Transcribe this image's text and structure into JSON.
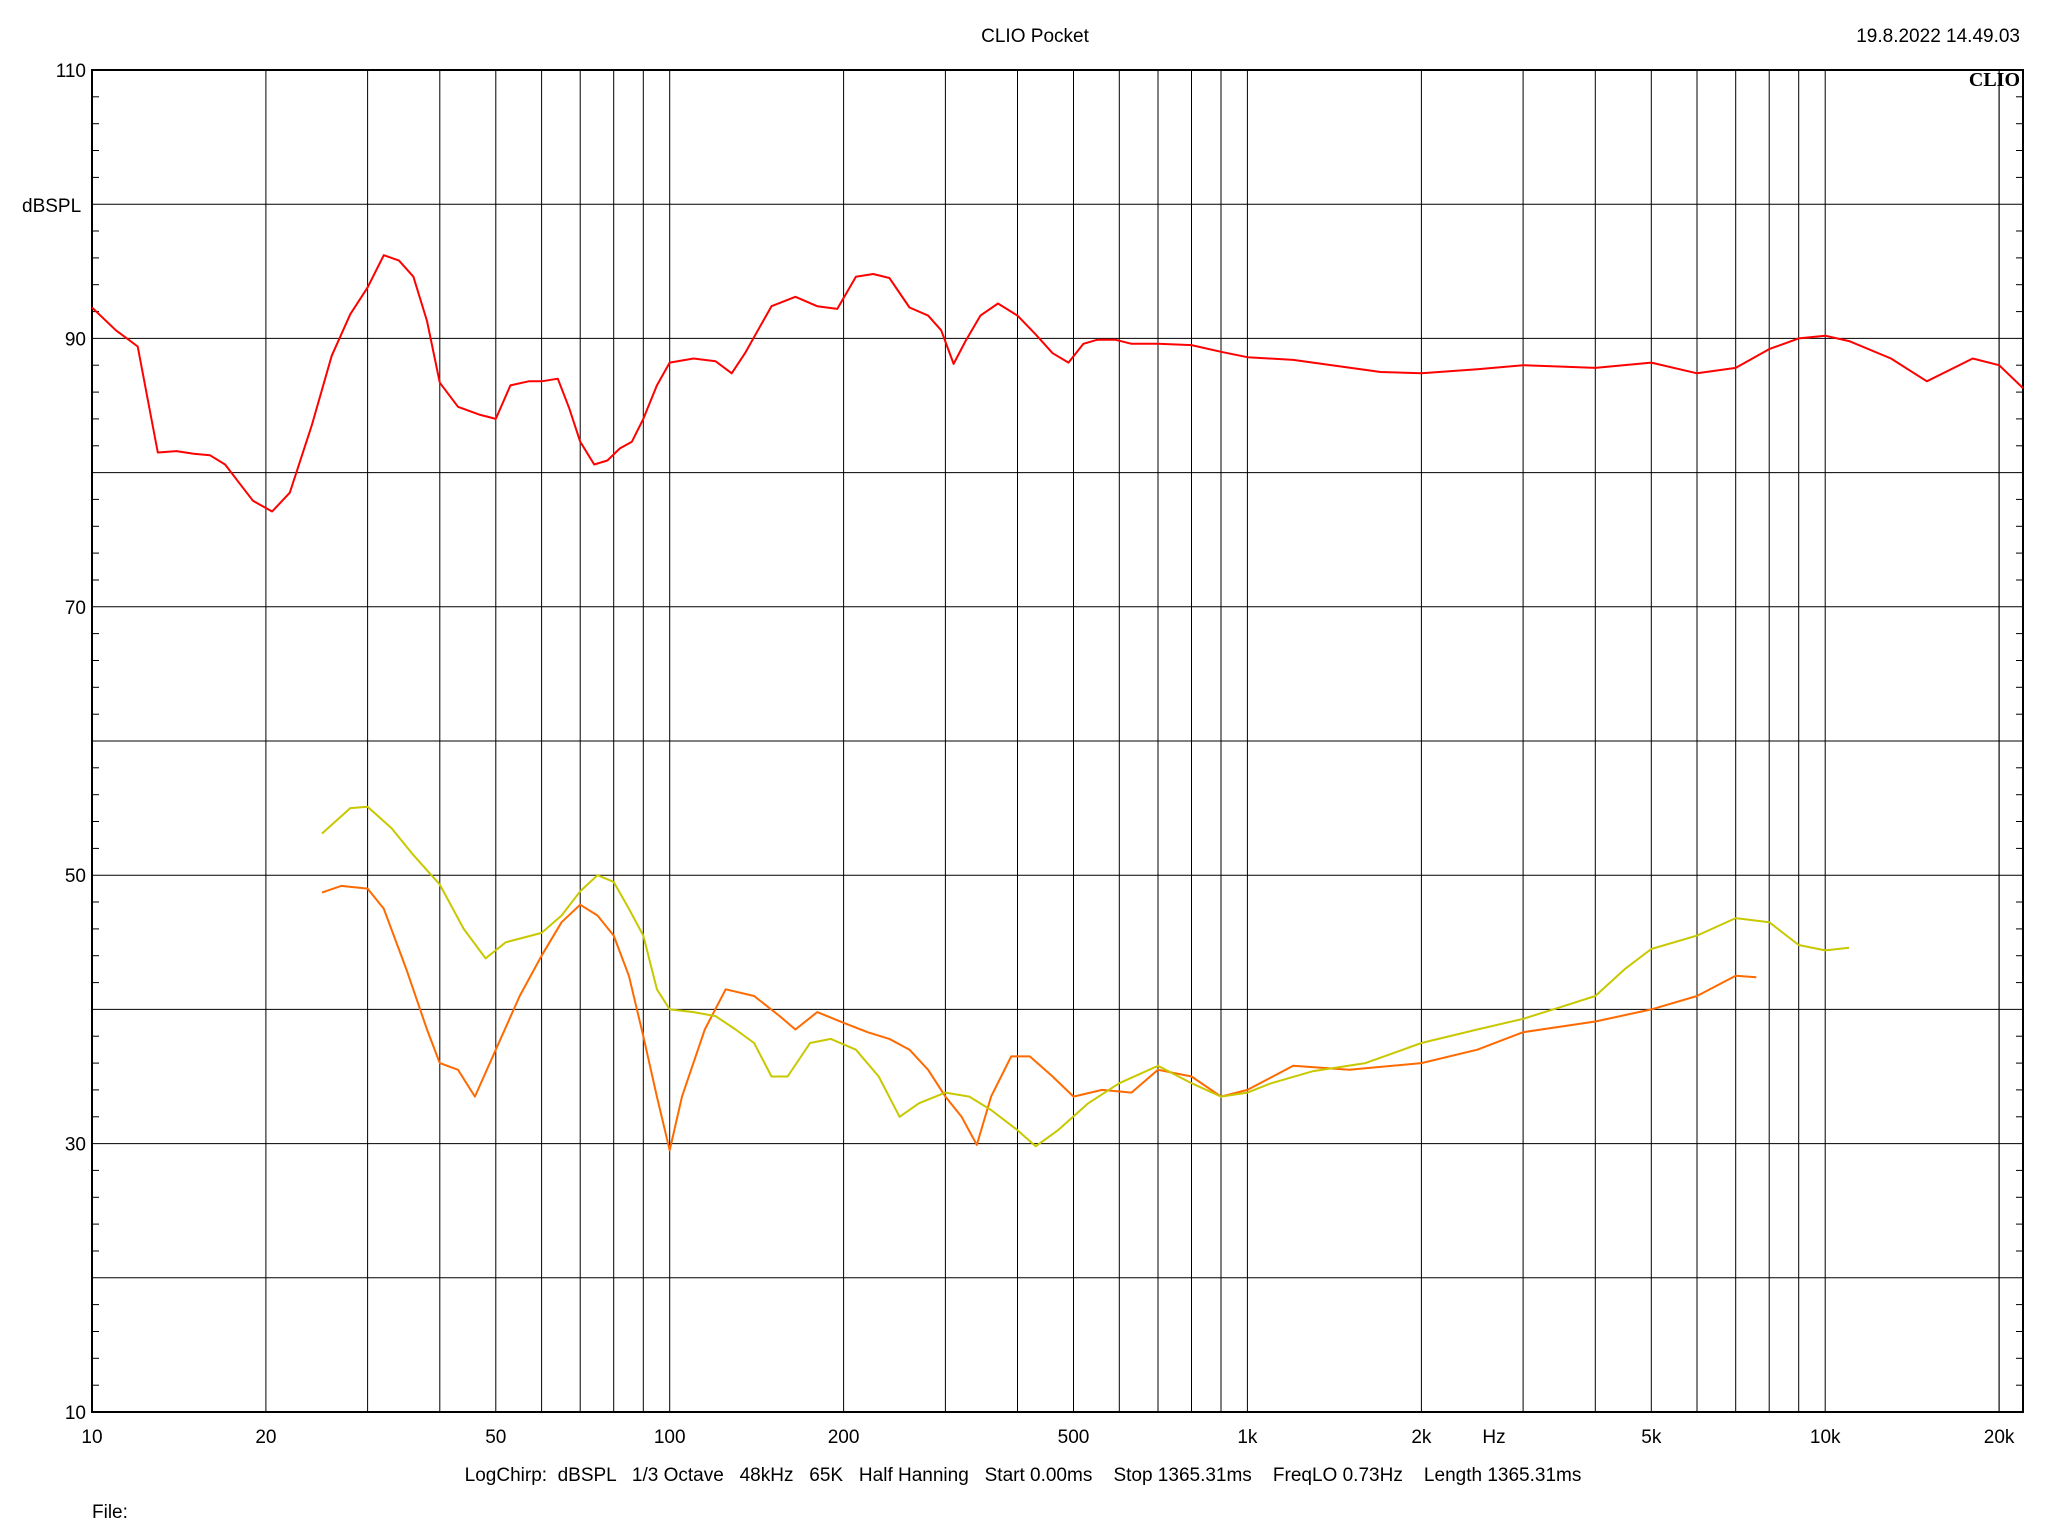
{
  "header": {
    "title": "CLIO Pocket",
    "timestamp": "19.8.2022 14.49.03",
    "logo": "CLIO"
  },
  "footer": {
    "settings": "LogChirp:  dBSPL   1/3 Octave   48kHz   65K   Half Hanning   Start 0.00ms    Stop 1365.31ms    FreqLO 0.73Hz    Length 1365.31ms",
    "file_label": "File:"
  },
  "chart_data": {
    "type": "line",
    "title": "CLIO Pocket",
    "xlabel": "Hz",
    "ylabel": "dBSPL",
    "x_scale": "log",
    "xlim": [
      10,
      22000
    ],
    "ylim": [
      10,
      110
    ],
    "grid": true,
    "x_ticks": [
      {
        "value": 10,
        "label": "10"
      },
      {
        "value": 20,
        "label": "20"
      },
      {
        "value": 50,
        "label": "50"
      },
      {
        "value": 100,
        "label": "100"
      },
      {
        "value": 200,
        "label": "200"
      },
      {
        "value": 500,
        "label": "500"
      },
      {
        "value": 1000,
        "label": "1k"
      },
      {
        "value": 2000,
        "label": "2k"
      },
      {
        "value": 5000,
        "label": "5k"
      },
      {
        "value": 10000,
        "label": "10k"
      },
      {
        "value": 20000,
        "label": "20k"
      }
    ],
    "y_ticks": [
      {
        "value": 110,
        "label": "110"
      },
      {
        "value": 90,
        "label": "90"
      },
      {
        "value": 70,
        "label": "70"
      },
      {
        "value": 50,
        "label": "50"
      },
      {
        "value": 30,
        "label": "30"
      },
      {
        "value": 10,
        "label": "10"
      }
    ],
    "series": [
      {
        "color": "#ff0000",
        "points": [
          [
            10,
            92.3
          ],
          [
            11,
            90.6
          ],
          [
            12,
            89.4
          ],
          [
            13,
            81.5
          ],
          [
            14,
            81.6
          ],
          [
            15,
            81.4
          ],
          [
            16,
            81.3
          ],
          [
            17,
            80.6
          ],
          [
            18,
            79.2
          ],
          [
            19,
            77.9
          ],
          [
            20.5,
            77.1
          ],
          [
            22,
            78.5
          ],
          [
            24,
            83.5
          ],
          [
            26,
            88.7
          ],
          [
            28,
            91.8
          ],
          [
            30,
            93.8
          ],
          [
            32,
            96.2
          ],
          [
            34,
            95.8
          ],
          [
            36,
            94.6
          ],
          [
            38,
            91.3
          ],
          [
            40,
            86.7
          ],
          [
            43,
            84.9
          ],
          [
            47,
            84.3
          ],
          [
            50,
            84.0
          ],
          [
            53,
            86.5
          ],
          [
            57,
            86.8
          ],
          [
            60,
            86.8
          ],
          [
            64,
            87.0
          ],
          [
            67,
            84.8
          ],
          [
            70,
            82.3
          ],
          [
            74,
            80.6
          ],
          [
            78,
            80.9
          ],
          [
            82,
            81.8
          ],
          [
            86,
            82.3
          ],
          [
            90,
            84.0
          ],
          [
            95,
            86.5
          ],
          [
            100,
            88.2
          ],
          [
            110,
            88.5
          ],
          [
            120,
            88.3
          ],
          [
            128,
            87.4
          ],
          [
            135,
            88.9
          ],
          [
            150,
            92.4
          ],
          [
            165,
            93.1
          ],
          [
            180,
            92.4
          ],
          [
            195,
            92.2
          ],
          [
            210,
            94.6
          ],
          [
            225,
            94.8
          ],
          [
            240,
            94.5
          ],
          [
            260,
            92.3
          ],
          [
            280,
            91.7
          ],
          [
            295,
            90.6
          ],
          [
            310,
            88.1
          ],
          [
            325,
            89.8
          ],
          [
            345,
            91.7
          ],
          [
            370,
            92.6
          ],
          [
            400,
            91.7
          ],
          [
            430,
            90.3
          ],
          [
            460,
            88.9
          ],
          [
            490,
            88.2
          ],
          [
            520,
            89.6
          ],
          [
            550,
            89.9
          ],
          [
            590,
            89.9
          ],
          [
            630,
            89.6
          ],
          [
            700,
            89.6
          ],
          [
            800,
            89.5
          ],
          [
            900,
            89.0
          ],
          [
            1000,
            88.6
          ],
          [
            1200,
            88.4
          ],
          [
            1400,
            88.0
          ],
          [
            1700,
            87.5
          ],
          [
            2000,
            87.4
          ],
          [
            2500,
            87.7
          ],
          [
            3000,
            88.0
          ],
          [
            3500,
            87.9
          ],
          [
            4000,
            87.8
          ],
          [
            5000,
            88.2
          ],
          [
            6000,
            87.4
          ],
          [
            7000,
            87.8
          ],
          [
            8000,
            89.2
          ],
          [
            9000,
            90.0
          ],
          [
            10000,
            90.2
          ],
          [
            11000,
            89.8
          ],
          [
            13000,
            88.5
          ],
          [
            15000,
            86.8
          ],
          [
            18000,
            88.5
          ],
          [
            20000,
            88.0
          ],
          [
            22000,
            86.3
          ]
        ]
      },
      {
        "color": "#ff6a00",
        "points": [
          [
            25,
            48.7
          ],
          [
            27,
            49.2
          ],
          [
            30,
            49.0
          ],
          [
            32,
            47.5
          ],
          [
            35,
            43.0
          ],
          [
            38,
            38.5
          ],
          [
            40,
            36.0
          ],
          [
            43,
            35.5
          ],
          [
            46,
            33.5
          ],
          [
            50,
            37.0
          ],
          [
            55,
            41.0
          ],
          [
            60,
            44.0
          ],
          [
            65,
            46.5
          ],
          [
            70,
            47.8
          ],
          [
            75,
            47.0
          ],
          [
            80,
            45.5
          ],
          [
            85,
            42.5
          ],
          [
            90,
            38.0
          ],
          [
            95,
            33.5
          ],
          [
            100,
            29.5
          ],
          [
            105,
            33.5
          ],
          [
            115,
            38.5
          ],
          [
            125,
            41.5
          ],
          [
            140,
            41.0
          ],
          [
            155,
            39.5
          ],
          [
            165,
            38.5
          ],
          [
            180,
            39.8
          ],
          [
            200,
            39.0
          ],
          [
            220,
            38.3
          ],
          [
            240,
            37.8
          ],
          [
            260,
            37.0
          ],
          [
            280,
            35.5
          ],
          [
            300,
            33.5
          ],
          [
            320,
            32.0
          ],
          [
            340,
            29.9
          ],
          [
            360,
            33.5
          ],
          [
            390,
            36.5
          ],
          [
            420,
            36.5
          ],
          [
            460,
            35.0
          ],
          [
            500,
            33.5
          ],
          [
            560,
            34.0
          ],
          [
            630,
            33.8
          ],
          [
            700,
            35.5
          ],
          [
            800,
            35.0
          ],
          [
            900,
            33.5
          ],
          [
            1000,
            34.0
          ],
          [
            1200,
            35.8
          ],
          [
            1500,
            35.5
          ],
          [
            2000,
            36.0
          ],
          [
            2500,
            37.0
          ],
          [
            3000,
            38.3
          ],
          [
            4000,
            39.1
          ],
          [
            5000,
            40.0
          ],
          [
            6000,
            41.0
          ],
          [
            7000,
            42.5
          ],
          [
            7600,
            42.4
          ]
        ]
      },
      {
        "color": "#c8c800",
        "points": [
          [
            25,
            53.1
          ],
          [
            28,
            55.0
          ],
          [
            30,
            55.1
          ],
          [
            33,
            53.5
          ],
          [
            36,
            51.5
          ],
          [
            40,
            49.3
          ],
          [
            44,
            46.0
          ],
          [
            48,
            43.8
          ],
          [
            52,
            45.0
          ],
          [
            60,
            45.7
          ],
          [
            65,
            47.0
          ],
          [
            70,
            48.8
          ],
          [
            75,
            50.0
          ],
          [
            80,
            49.5
          ],
          [
            85,
            47.5
          ],
          [
            90,
            45.5
          ],
          [
            95,
            41.5
          ],
          [
            100,
            40.0
          ],
          [
            110,
            39.8
          ],
          [
            120,
            39.5
          ],
          [
            130,
            38.5
          ],
          [
            140,
            37.5
          ],
          [
            150,
            35.0
          ],
          [
            160,
            35.0
          ],
          [
            175,
            37.5
          ],
          [
            190,
            37.8
          ],
          [
            210,
            37.0
          ],
          [
            230,
            35.0
          ],
          [
            250,
            32.0
          ],
          [
            270,
            33.0
          ],
          [
            300,
            33.8
          ],
          [
            330,
            33.5
          ],
          [
            360,
            32.5
          ],
          [
            400,
            31.0
          ],
          [
            430,
            29.8
          ],
          [
            470,
            31.0
          ],
          [
            530,
            33.0
          ],
          [
            600,
            34.5
          ],
          [
            700,
            35.8
          ],
          [
            800,
            34.5
          ],
          [
            900,
            33.5
          ],
          [
            1000,
            33.8
          ],
          [
            1100,
            34.5
          ],
          [
            1300,
            35.4
          ],
          [
            1600,
            36.0
          ],
          [
            2000,
            37.5
          ],
          [
            2500,
            38.5
          ],
          [
            3000,
            39.3
          ],
          [
            3500,
            40.2
          ],
          [
            4000,
            41.0
          ],
          [
            4500,
            43.0
          ],
          [
            5000,
            44.5
          ],
          [
            6000,
            45.5
          ],
          [
            7000,
            46.8
          ],
          [
            8000,
            46.5
          ],
          [
            9000,
            44.8
          ],
          [
            10000,
            44.4
          ],
          [
            11000,
            44.6
          ]
        ]
      }
    ]
  }
}
